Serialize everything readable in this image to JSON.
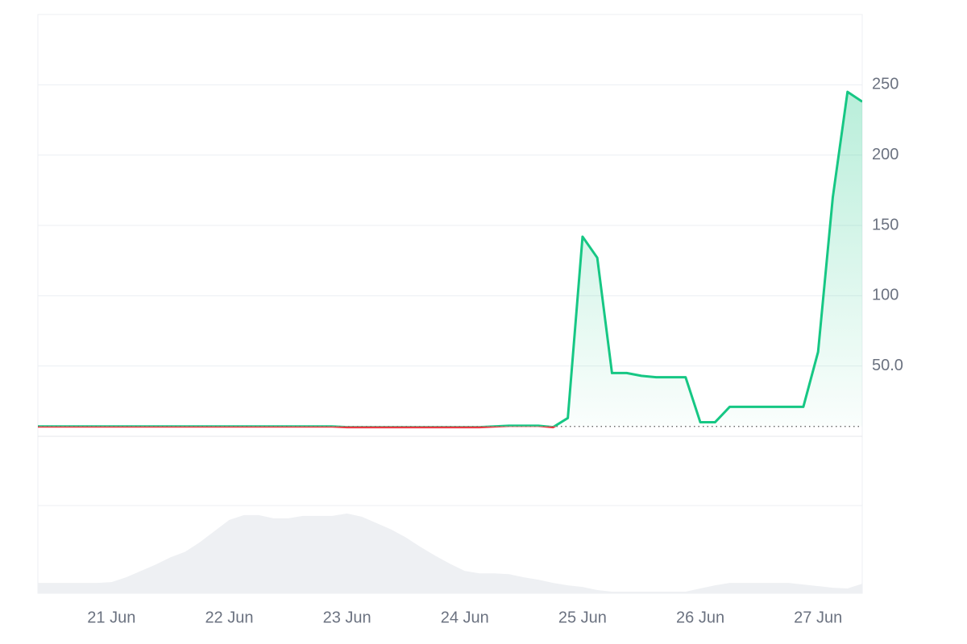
{
  "chart_data": {
    "type": "line",
    "categories": [
      null,
      null,
      null,
      null,
      null,
      "21 Jun",
      null,
      null,
      null,
      null,
      null,
      null,
      null,
      "22 Jun",
      null,
      null,
      null,
      null,
      null,
      null,
      null,
      "23 Jun",
      null,
      null,
      null,
      null,
      null,
      null,
      null,
      "24 Jun",
      null,
      null,
      null,
      null,
      null,
      null,
      null,
      "25 Jun",
      null,
      null,
      null,
      null,
      null,
      null,
      null,
      "26 Jun",
      null,
      null,
      null,
      null,
      null,
      null,
      null,
      "27 Jun",
      null,
      null,
      null
    ],
    "values": [
      7,
      7,
      7,
      7,
      7,
      7,
      7,
      7,
      7,
      7,
      7,
      7,
      7,
      7,
      7,
      7,
      7,
      7,
      7,
      7,
      7,
      6.5,
      6.5,
      6.5,
      6.5,
      6.5,
      6.5,
      6.5,
      6.5,
      6.5,
      6.5,
      7,
      7.5,
      7.5,
      7.5,
      6.5,
      13,
      142,
      127,
      45,
      45,
      43,
      42,
      42,
      42,
      10,
      10,
      21,
      21,
      21,
      21,
      21,
      21,
      60,
      170,
      245,
      238
    ],
    "up_color": "#16c784",
    "down_color": "#ea3943",
    "ylim": [
      0,
      300
    ],
    "yticks": [
      {
        "value": 50,
        "label": "50.0"
      },
      100,
      150,
      200,
      250
    ],
    "grid": true,
    "volume": {
      "values": [
        13,
        13,
        13,
        13,
        13,
        14,
        20,
        28,
        36,
        45,
        52,
        64,
        78,
        92,
        98,
        98,
        94,
        94,
        97,
        97,
        97,
        100,
        96,
        88,
        80,
        70,
        58,
        47,
        37,
        28,
        25,
        25,
        24,
        20,
        17,
        13,
        10,
        8,
        4,
        2,
        2,
        2,
        2,
        2,
        2,
        6,
        10,
        13,
        13,
        13,
        13,
        13,
        11,
        9,
        7,
        6,
        12
      ],
      "ylim": [
        0,
        110
      ],
      "color": "#eef0f3"
    }
  }
}
